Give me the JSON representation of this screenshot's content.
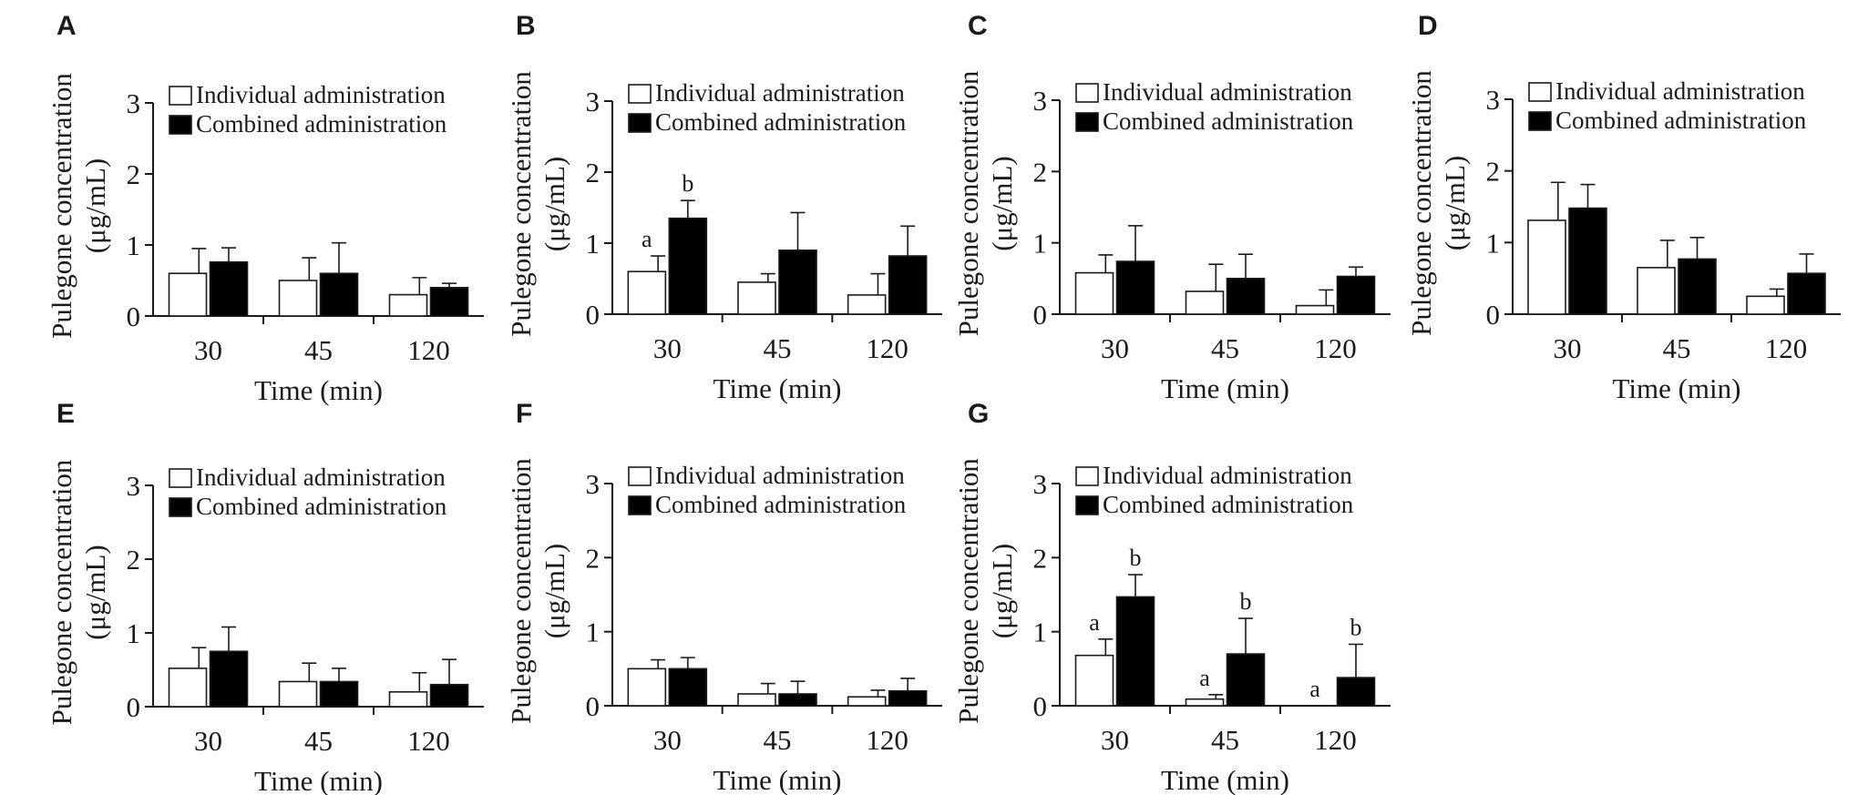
{
  "figure": {
    "bar_colors": {
      "individual": "#ffffff",
      "combined": "#000000"
    },
    "ink_color": "#1a1a1a"
  },
  "chart_data": [
    {
      "panel": "A",
      "type": "bar",
      "categories": [
        "30",
        "45",
        "120"
      ],
      "yticks": [
        "0",
        "1",
        "2",
        "3"
      ],
      "ylim": [
        0,
        3
      ],
      "xlabel": "Time (min)",
      "ylabel": [
        "Pulegone concentration",
        "(μg/mL)"
      ],
      "legend": {
        "placement": "top-left",
        "entries": [
          "Individual administration",
          "Combined administration"
        ]
      },
      "series": [
        {
          "name": "Individual administration",
          "values": [
            0.6,
            0.5,
            0.3
          ],
          "errors": [
            0.35,
            0.32,
            0.24
          ],
          "labels": [
            "",
            "",
            ""
          ]
        },
        {
          "name": "Combined administration",
          "values": [
            0.76,
            0.6,
            0.4
          ],
          "errors": [
            0.2,
            0.43,
            0.06
          ],
          "labels": [
            "",
            "",
            ""
          ]
        }
      ]
    },
    {
      "panel": "B",
      "type": "bar",
      "categories": [
        "30",
        "45",
        "120"
      ],
      "yticks": [
        "0",
        "1",
        "2",
        "3"
      ],
      "ylim": [
        0,
        3
      ],
      "xlabel": "Time (min)",
      "ylabel": [
        "Pulegone concentration",
        "(μg/mL)"
      ],
      "legend": {
        "placement": "top-left",
        "entries": [
          "Individual administration",
          "Combined administration"
        ]
      },
      "series": [
        {
          "name": "Individual administration",
          "values": [
            0.6,
            0.45,
            0.27
          ],
          "errors": [
            0.22,
            0.12,
            0.3
          ],
          "labels": [
            "a",
            "",
            ""
          ]
        },
        {
          "name": "Combined administration",
          "values": [
            1.35,
            0.9,
            0.82
          ],
          "errors": [
            0.25,
            0.53,
            0.42
          ],
          "labels": [
            "b",
            "",
            ""
          ]
        }
      ]
    },
    {
      "panel": "C",
      "type": "bar",
      "categories": [
        "30",
        "45",
        "120"
      ],
      "yticks": [
        "0",
        "1",
        "2",
        "3"
      ],
      "ylim": [
        0,
        3
      ],
      "xlabel": "Time (min)",
      "ylabel": [
        "Pulegone concentration",
        "(μg/mL)"
      ],
      "legend": {
        "placement": "top-left",
        "entries": [
          "Individual administration",
          "Combined administration"
        ]
      },
      "series": [
        {
          "name": "Individual administration",
          "values": [
            0.58,
            0.32,
            0.12
          ],
          "errors": [
            0.25,
            0.38,
            0.22
          ],
          "labels": [
            "",
            "",
            ""
          ]
        },
        {
          "name": "Combined administration",
          "values": [
            0.74,
            0.5,
            0.53
          ],
          "errors": [
            0.5,
            0.34,
            0.13
          ],
          "labels": [
            "",
            "",
            ""
          ]
        }
      ]
    },
    {
      "panel": "D",
      "type": "bar",
      "categories": [
        "30",
        "45",
        "120"
      ],
      "yticks": [
        "0",
        "1",
        "2",
        "3"
      ],
      "ylim": [
        0,
        3
      ],
      "xlabel": "Time (min)",
      "ylabel": [
        "Pulegone concentration",
        "(μg/mL)"
      ],
      "legend": {
        "placement": "top-left",
        "entries": [
          "Individual administration",
          "Combined administration"
        ]
      },
      "series": [
        {
          "name": "Individual administration",
          "values": [
            1.31,
            0.65,
            0.25
          ],
          "errors": [
            0.53,
            0.38,
            0.1
          ],
          "labels": [
            "",
            "",
            ""
          ]
        },
        {
          "name": "Combined administration",
          "values": [
            1.48,
            0.77,
            0.57
          ],
          "errors": [
            0.33,
            0.3,
            0.27
          ],
          "labels": [
            "",
            "",
            ""
          ]
        }
      ]
    },
    {
      "panel": "E",
      "type": "bar",
      "categories": [
        "30",
        "45",
        "120"
      ],
      "yticks": [
        "0",
        "1",
        "2",
        "3"
      ],
      "ylim": [
        0,
        3
      ],
      "xlabel": "Time (min)",
      "ylabel": [
        "Pulegone concentration",
        "(μg/mL)"
      ],
      "legend": {
        "placement": "top-left",
        "entries": [
          "Individual administration",
          "Combined administration"
        ]
      },
      "series": [
        {
          "name": "Individual administration",
          "values": [
            0.52,
            0.34,
            0.2
          ],
          "errors": [
            0.28,
            0.25,
            0.26
          ],
          "labels": [
            "",
            "",
            ""
          ]
        },
        {
          "name": "Combined administration",
          "values": [
            0.75,
            0.34,
            0.3
          ],
          "errors": [
            0.33,
            0.18,
            0.34
          ],
          "labels": [
            "",
            "",
            ""
          ]
        }
      ]
    },
    {
      "panel": "F",
      "type": "bar",
      "categories": [
        "30",
        "45",
        "120"
      ],
      "yticks": [
        "0",
        "1",
        "2",
        "3"
      ],
      "ylim": [
        0,
        3
      ],
      "xlabel": "Time (min)",
      "ylabel": [
        "Pulegone concentration",
        "(μg/mL)"
      ],
      "legend": {
        "placement": "top-left",
        "entries": [
          "Individual administration",
          "Combined administration"
        ]
      },
      "series": [
        {
          "name": "Individual administration",
          "values": [
            0.5,
            0.16,
            0.12
          ],
          "errors": [
            0.12,
            0.14,
            0.09
          ],
          "labels": [
            "",
            "",
            ""
          ]
        },
        {
          "name": "Combined administration",
          "values": [
            0.5,
            0.16,
            0.2
          ],
          "errors": [
            0.15,
            0.17,
            0.17
          ],
          "labels": [
            "",
            "",
            ""
          ]
        }
      ]
    },
    {
      "panel": "G",
      "type": "bar",
      "categories": [
        "30",
        "45",
        "120"
      ],
      "yticks": [
        "0",
        "1",
        "2",
        "3"
      ],
      "ylim": [
        0,
        3
      ],
      "xlabel": "Time (min)",
      "ylabel": [
        "Pulegone concentration",
        "(μg/mL)"
      ],
      "legend": {
        "placement": "top-left",
        "entries": [
          "Individual administration",
          "Combined administration"
        ]
      },
      "series": [
        {
          "name": "Individual administration",
          "values": [
            0.68,
            0.09,
            0.0
          ],
          "errors": [
            0.22,
            0.06,
            0.0
          ],
          "labels": [
            "a",
            "a",
            "a"
          ]
        },
        {
          "name": "Combined administration",
          "values": [
            1.47,
            0.7,
            0.38
          ],
          "errors": [
            0.3,
            0.48,
            0.45
          ],
          "labels": [
            "b",
            "b",
            "b"
          ]
        }
      ]
    }
  ]
}
